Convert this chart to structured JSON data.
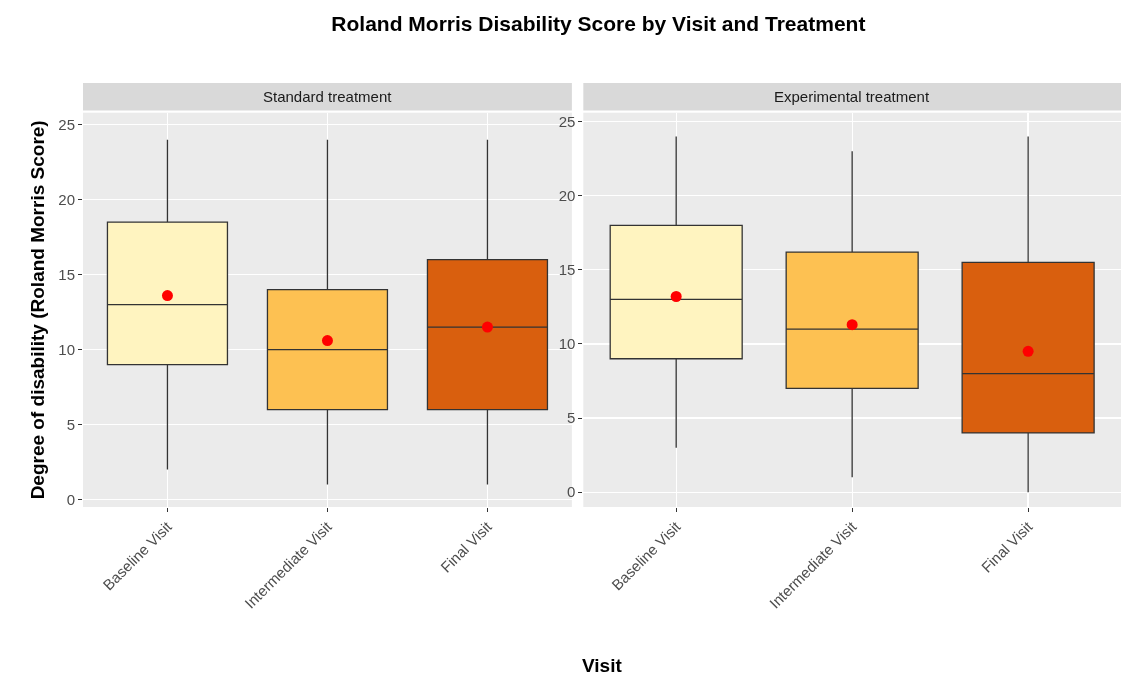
{
  "chart_data": [
    {
      "type": "box",
      "title": "Roland Morris Disability Score by Visit and Treatment",
      "subtitle": "Standard treatment",
      "xlabel": "Visit",
      "ylabel": "Degree of disability (Roland Morris Score)",
      "categories": [
        "Baseline Visit",
        "Intermediate Visit",
        "Final Visit"
      ],
      "colors": [
        "#fff4c0",
        "#fdc152",
        "#d95f0e"
      ],
      "boxes": [
        {
          "low": 2,
          "q1": 9,
          "median": 13,
          "q3": 18.5,
          "high": 24
        },
        {
          "low": 1,
          "q1": 6,
          "median": 10,
          "q3": 14,
          "high": 24
        },
        {
          "low": 1,
          "q1": 6,
          "median": 11.5,
          "q3": 16,
          "high": 24
        }
      ],
      "series": [
        {
          "type": "scatter",
          "x": [
            "Baseline Visit",
            "Intermediate Visit",
            "Final Visit"
          ],
          "values": [
            13.6,
            10.6,
            11.5
          ],
          "color": "#ff0000"
        }
      ],
      "marker": "circle",
      "ylim": [
        -0.5,
        25.8
      ],
      "yticks": [
        0,
        5,
        10,
        15,
        20,
        25
      ],
      "grid": true
    },
    {
      "type": "box",
      "subtitle": "Experimental treatment",
      "categories": [
        "Baseline Visit",
        "Intermediate Visit",
        "Final Visit"
      ],
      "colors": [
        "#fff4c0",
        "#fdc152",
        "#d95f0e"
      ],
      "boxes": [
        {
          "low": 3,
          "q1": 9,
          "median": 13,
          "q3": 18,
          "high": 24
        },
        {
          "low": 1,
          "q1": 7,
          "median": 11,
          "q3": 16.2,
          "high": 23
        },
        {
          "low": 0,
          "q1": 4,
          "median": 8,
          "q3": 15.5,
          "high": 24
        }
      ],
      "series": [
        {
          "type": "scatter",
          "x": [
            "Baseline Visit",
            "Intermediate Visit",
            "Final Visit"
          ],
          "values": [
            13.2,
            11.3,
            9.5
          ],
          "color": "#ff0000"
        }
      ],
      "marker": "circle",
      "ylim": [
        -1,
        25.6
      ],
      "yticks": [
        0,
        5,
        10,
        15,
        20,
        25
      ],
      "grid": true
    }
  ]
}
